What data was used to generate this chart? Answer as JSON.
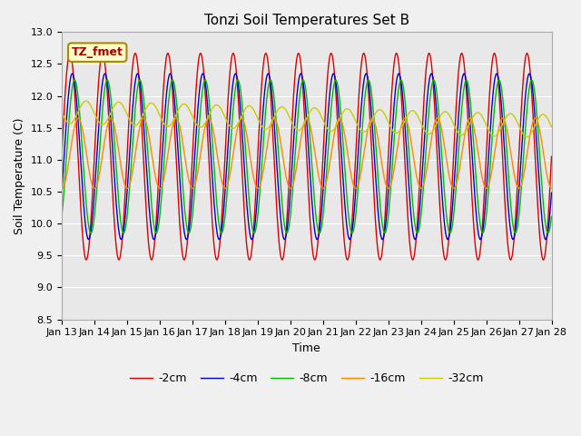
{
  "title": "Tonzi Soil Temperatures Set B",
  "xlabel": "Time",
  "ylabel": "Soil Temperature (C)",
  "ylim": [
    8.5,
    13.0
  ],
  "yticks": [
    8.5,
    9.0,
    9.5,
    10.0,
    10.5,
    11.0,
    11.5,
    12.0,
    12.5,
    13.0
  ],
  "xtick_labels": [
    "Jan 13",
    "Jan 14",
    "Jan 15",
    "Jan 16",
    "Jan 17",
    "Jan 18",
    "Jan 19",
    "Jan 20",
    "Jan 21",
    "Jan 22",
    "Jan 23",
    "Jan 24",
    "Jan 25",
    "Jan 26",
    "Jan 27",
    "Jan 28"
  ],
  "series": [
    {
      "label": "-2cm",
      "color": "#dd0000",
      "amplitude": 1.62,
      "phase": 0.0,
      "mean": 11.05,
      "trend": 0.0
    },
    {
      "label": "-4cm",
      "color": "#0000cc",
      "amplitude": 1.3,
      "phase": 0.45,
      "mean": 11.05,
      "trend": 0.0
    },
    {
      "label": "-8cm",
      "color": "#00bb00",
      "amplitude": 1.2,
      "phase": 0.9,
      "mean": 11.05,
      "trend": 0.0
    },
    {
      "label": "-16cm",
      "color": "#ff8800",
      "amplitude": 0.55,
      "phase": 1.6,
      "mean": 11.1,
      "trend": 0.0
    },
    {
      "label": "-32cm",
      "color": "#cccc00",
      "amplitude": 0.18,
      "phase": 3.1,
      "mean": 11.75,
      "trend": -0.015
    }
  ],
  "period_hours": 24,
  "n_points": 720,
  "bg_color": "#e8e8e8",
  "fig_bg_color": "#f0f0f0",
  "annotation_text": "TZ_fmet",
  "annotation_color": "#aa0000",
  "annotation_bg": "#ffffcc",
  "annotation_border": "#aa8800",
  "grid_color": "white",
  "title_fontsize": 11,
  "axis_fontsize": 9,
  "tick_fontsize": 8
}
